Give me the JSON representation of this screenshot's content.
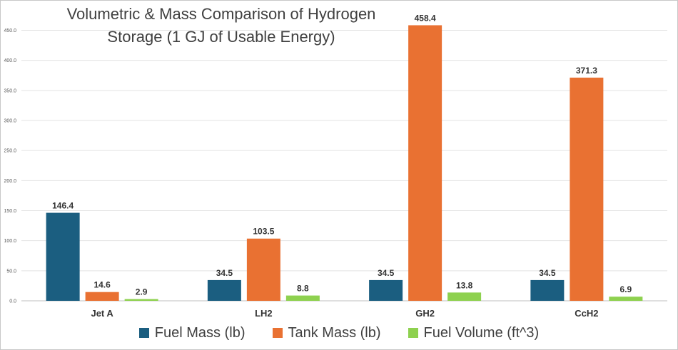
{
  "chart_data": {
    "type": "bar",
    "title": "Volumetric & Mass Comparison of Hydrogen\nStorage (1 GJ of Usable Energy)",
    "categories": [
      "Jet A",
      "LH2",
      "GH2",
      "CcH2"
    ],
    "series": [
      {
        "name": "Fuel Mass (lb)",
        "color": "#1b5e80",
        "values": [
          146.4,
          34.5,
          34.5,
          34.5
        ],
        "labels": [
          "146.4",
          "34.5",
          "34.5",
          "34.5"
        ]
      },
      {
        "name": "Tank Mass (lb)",
        "color": "#e97132",
        "values": [
          14.6,
          103.5,
          458.4,
          371.3
        ],
        "labels": [
          "14.6",
          "103.5",
          "458.4",
          "371.3"
        ]
      },
      {
        "name": "Fuel Volume (ft^3)",
        "color": "#8ed14f",
        "values": [
          2.9,
          8.8,
          13.8,
          6.9
        ],
        "labels": [
          "2.9",
          "8.8",
          "13.8",
          "6.9"
        ]
      }
    ],
    "yticks": [
      "0.0",
      "50.0",
      "100.0",
      "150.0",
      "200.0",
      "250.0",
      "300.0",
      "350.0",
      "400.0",
      "450.0"
    ],
    "ylim": [
      0,
      470
    ],
    "grid": true,
    "legend": "bottom"
  }
}
